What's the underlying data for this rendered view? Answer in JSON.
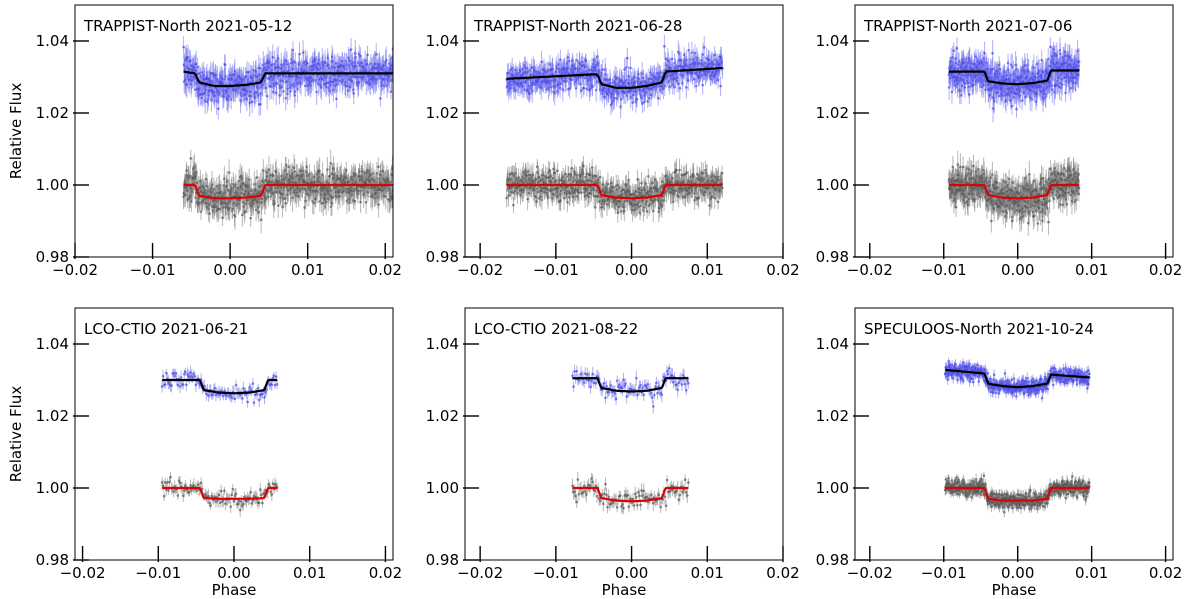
{
  "figure": {
    "ylabel": "Relative Flux",
    "xlabel": "Phase"
  },
  "chart_data": [
    {
      "type": "scatter",
      "title": "TRAPPIST-North 2021-05-12",
      "xlim": [
        -0.02,
        0.021
      ],
      "ylim": [
        0.98,
        1.05
      ],
      "xticks": [
        -0.02,
        -0.01,
        0.0,
        0.01,
        0.02
      ],
      "xtick_labels": [
        "−0.02",
        "−0.01",
        "0.00",
        "0.01",
        "0.02"
      ],
      "yticks": [
        0.98,
        1.0,
        1.02,
        1.04
      ],
      "ytick_labels": [
        "0.98",
        "1.00",
        "1.02",
        "1.04"
      ],
      "xlabel": "",
      "ylabel": "Relative Flux",
      "series": [
        {
          "color": "#6f6ff0",
          "kind": "points",
          "x_range": [
            -0.006,
            0.021
          ],
          "n": 700,
          "scatter": 0.0035,
          "model": {
            "x": [
              -0.006,
              -0.0045,
              -0.004,
              -0.002,
              0.0,
              0.002,
              0.004,
              0.0045,
              0.021
            ],
            "y": [
              1.0315,
              1.031,
              1.0285,
              1.0275,
              1.0275,
              1.0278,
              1.0285,
              1.031,
              1.031
            ]
          }
        },
        {
          "color": "#7a7a7a",
          "kind": "points",
          "x_range": [
            -0.006,
            0.021
          ],
          "n": 700,
          "scatter": 0.0035,
          "model": {
            "x": [
              -0.006,
              -0.0045,
              -0.004,
              -0.002,
              0.0,
              0.002,
              0.004,
              0.0045,
              0.021
            ],
            "y": [
              1.0,
              1.0,
              0.997,
              0.9963,
              0.9963,
              0.9965,
              0.997,
              1.0,
              1.0
            ]
          }
        }
      ],
      "model_lines": [
        {
          "color": "#000000",
          "target": 0
        },
        {
          "color": "#e00000",
          "target": 1
        }
      ]
    },
    {
      "type": "scatter",
      "title": "TRAPPIST-North 2021-06-28",
      "xlim": [
        -0.022,
        0.02
      ],
      "ylim": [
        0.98,
        1.05
      ],
      "xticks": [
        -0.02,
        -0.01,
        0.0,
        0.01,
        0.02
      ],
      "xtick_labels": [
        "−0.02",
        "−0.01",
        "0.00",
        "0.01",
        "0.02"
      ],
      "yticks": [
        0.98,
        1.0,
        1.02,
        1.04
      ],
      "ytick_labels": [
        "0.98",
        "1.00",
        "1.02",
        "1.04"
      ],
      "xlabel": "",
      "ylabel": "",
      "series": [
        {
          "color": "#6f6ff0",
          "kind": "points",
          "x_range": [
            -0.0165,
            0.012
          ],
          "n": 700,
          "scatter": 0.003,
          "model": {
            "x": [
              -0.0165,
              -0.0045,
              -0.004,
              -0.002,
              0.0,
              0.002,
              0.004,
              0.0045,
              0.012
            ],
            "y": [
              1.0295,
              1.0308,
              1.028,
              1.027,
              1.027,
              1.0275,
              1.0285,
              1.0315,
              1.0325
            ]
          }
        },
        {
          "color": "#7a7a7a",
          "kind": "points",
          "x_range": [
            -0.0165,
            0.012
          ],
          "n": 700,
          "scatter": 0.003,
          "model": {
            "x": [
              -0.0165,
              -0.0045,
              -0.004,
              -0.002,
              0.0,
              0.002,
              0.004,
              0.0045,
              0.012
            ],
            "y": [
              1.0,
              1.0,
              0.9972,
              0.9965,
              0.9963,
              0.9965,
              0.9972,
              1.0,
              1.0
            ]
          }
        }
      ],
      "model_lines": [
        {
          "color": "#000000",
          "target": 0
        },
        {
          "color": "#e00000",
          "target": 1
        }
      ]
    },
    {
      "type": "scatter",
      "title": "TRAPPIST-North 2021-07-06",
      "xlim": [
        -0.022,
        0.021
      ],
      "ylim": [
        0.98,
        1.05
      ],
      "xticks": [
        -0.02,
        -0.01,
        0.0,
        0.01,
        0.02
      ],
      "xtick_labels": [
        "−0.02",
        "−0.01",
        "0.00",
        "0.01",
        "0.02"
      ],
      "yticks": [
        0.98,
        1.0,
        1.02,
        1.04
      ],
      "ytick_labels": [
        "0.98",
        "1.00",
        "1.02",
        "1.04"
      ],
      "xlabel": "",
      "ylabel": "",
      "series": [
        {
          "color": "#6f6ff0",
          "kind": "points",
          "x_range": [
            -0.0093,
            0.0083
          ],
          "n": 600,
          "scatter": 0.0035,
          "model": {
            "x": [
              -0.0093,
              -0.0045,
              -0.004,
              -0.002,
              0.0,
              0.002,
              0.004,
              0.0045,
              0.0083
            ],
            "y": [
              1.0315,
              1.0315,
              1.0288,
              1.0282,
              1.028,
              1.0283,
              1.029,
              1.0318,
              1.0318
            ]
          }
        },
        {
          "color": "#7a7a7a",
          "kind": "points",
          "x_range": [
            -0.0093,
            0.0083
          ],
          "n": 600,
          "scatter": 0.0035,
          "model": {
            "x": [
              -0.0093,
              -0.0045,
              -0.004,
              -0.002,
              0.0,
              0.002,
              0.004,
              0.0045,
              0.0083
            ],
            "y": [
              1.0,
              1.0,
              0.9972,
              0.9965,
              0.9963,
              0.9965,
              0.9972,
              1.0,
              1.0
            ]
          }
        }
      ],
      "model_lines": [
        {
          "color": "#000000",
          "target": 0
        },
        {
          "color": "#e00000",
          "target": 1
        }
      ]
    },
    {
      "type": "scatter",
      "title": "LCO-CTIO 2021-06-21",
      "xlim": [
        -0.021,
        0.021
      ],
      "ylim": [
        0.98,
        1.05
      ],
      "xticks": [
        -0.02,
        -0.01,
        0.0,
        0.01,
        0.02
      ],
      "xtick_labels": [
        "−0.02",
        "−0.01",
        "0.00",
        "0.01",
        "0.02"
      ],
      "yticks": [
        0.98,
        1.0,
        1.02,
        1.04
      ],
      "ytick_labels": [
        "0.98",
        "1.00",
        "1.02",
        "1.04"
      ],
      "xlabel": "Phase",
      "ylabel": "Relative Flux",
      "series": [
        {
          "color": "#6f6ff0",
          "kind": "points",
          "x_range": [
            -0.0095,
            0.0057
          ],
          "n": 110,
          "scatter": 0.0018,
          "model": {
            "x": [
              -0.0095,
              -0.0045,
              -0.004,
              -0.002,
              0.0,
              0.002,
              0.004,
              0.0045,
              0.0057
            ],
            "y": [
              1.03,
              1.03,
              1.0272,
              1.0265,
              1.0263,
              1.0265,
              1.0272,
              1.03,
              1.03
            ]
          }
        },
        {
          "color": "#7a7a7a",
          "kind": "points",
          "x_range": [
            -0.0095,
            0.0057
          ],
          "n": 110,
          "scatter": 0.0018,
          "model": {
            "x": [
              -0.0095,
              -0.0045,
              -0.004,
              -0.002,
              0.0,
              0.002,
              0.004,
              0.0045,
              0.0057
            ],
            "y": [
              1.0,
              1.0,
              0.9972,
              0.997,
              0.997,
              0.997,
              0.9972,
              1.0,
              1.0
            ]
          }
        }
      ],
      "model_lines": [
        {
          "color": "#000000",
          "target": 0
        },
        {
          "color": "#e00000",
          "target": 1
        }
      ]
    },
    {
      "type": "scatter",
      "title": "LCO-CTIO 2021-08-22",
      "xlim": [
        -0.022,
        0.02
      ],
      "ylim": [
        0.98,
        1.05
      ],
      "xticks": [
        -0.02,
        -0.01,
        0.0,
        0.01,
        0.02
      ],
      "xtick_labels": [
        "−0.02",
        "−0.01",
        "0.00",
        "0.01",
        "0.02"
      ],
      "yticks": [
        0.98,
        1.0,
        1.02,
        1.04
      ],
      "ytick_labels": [
        "0.98",
        "1.00",
        "1.02",
        "1.04"
      ],
      "xlabel": "Phase",
      "ylabel": "",
      "series": [
        {
          "color": "#6f6ff0",
          "kind": "points",
          "x_range": [
            -0.0078,
            0.0075
          ],
          "n": 110,
          "scatter": 0.002,
          "model": {
            "x": [
              -0.0078,
              -0.0045,
              -0.004,
              -0.002,
              0.0,
              0.002,
              0.004,
              0.0045,
              0.0075
            ],
            "y": [
              1.0305,
              1.0305,
              1.0278,
              1.027,
              1.0268,
              1.027,
              1.0278,
              1.0305,
              1.0305
            ]
          }
        },
        {
          "color": "#7a7a7a",
          "kind": "points",
          "x_range": [
            -0.0078,
            0.0075
          ],
          "n": 110,
          "scatter": 0.002,
          "model": {
            "x": [
              -0.0078,
              -0.0045,
              -0.004,
              -0.002,
              0.0,
              0.002,
              0.004,
              0.0045,
              0.0075
            ],
            "y": [
              1.0,
              1.0,
              0.9972,
              0.9965,
              0.9963,
              0.9965,
              0.9972,
              1.0,
              1.0
            ]
          }
        }
      ],
      "model_lines": [
        {
          "color": "#000000",
          "target": 0
        },
        {
          "color": "#e00000",
          "target": 1
        }
      ]
    },
    {
      "type": "scatter",
      "title": "SPECULOOS-North 2021-10-24",
      "xlim": [
        -0.022,
        0.021
      ],
      "ylim": [
        0.98,
        1.05
      ],
      "xticks": [
        -0.02,
        -0.01,
        0.0,
        0.01,
        0.02
      ],
      "xtick_labels": [
        "−0.02",
        "−0.01",
        "0.00",
        "0.01",
        "0.02"
      ],
      "yticks": [
        0.98,
        1.0,
        1.02,
        1.04
      ],
      "ytick_labels": [
        "0.98",
        "1.00",
        "1.02",
        "1.04"
      ],
      "xlabel": "Phase",
      "ylabel": "",
      "series": [
        {
          "color": "#6f6ff0",
          "kind": "points",
          "x_range": [
            -0.0098,
            0.0097
          ],
          "n": 650,
          "scatter": 0.0015,
          "model": {
            "x": [
              -0.0098,
              -0.0045,
              -0.004,
              -0.002,
              0.0,
              0.002,
              0.004,
              0.0045,
              0.0097
            ],
            "y": [
              1.0328,
              1.0318,
              1.029,
              1.0283,
              1.028,
              1.0283,
              1.029,
              1.0315,
              1.0307
            ]
          }
        },
        {
          "color": "#7a7a7a",
          "kind": "points",
          "x_range": [
            -0.0098,
            0.0097
          ],
          "n": 650,
          "scatter": 0.0015,
          "model": {
            "x": [
              -0.0098,
              -0.0045,
              -0.004,
              -0.002,
              0.0,
              0.002,
              0.004,
              0.0045,
              0.0097
            ],
            "y": [
              1.0,
              1.0,
              0.997,
              0.9965,
              0.9965,
              0.9965,
              0.997,
              1.0,
              1.0
            ]
          }
        }
      ],
      "model_lines": [
        {
          "color": "#000000",
          "target": 0
        },
        {
          "color": "#e00000",
          "target": 1
        }
      ]
    }
  ]
}
